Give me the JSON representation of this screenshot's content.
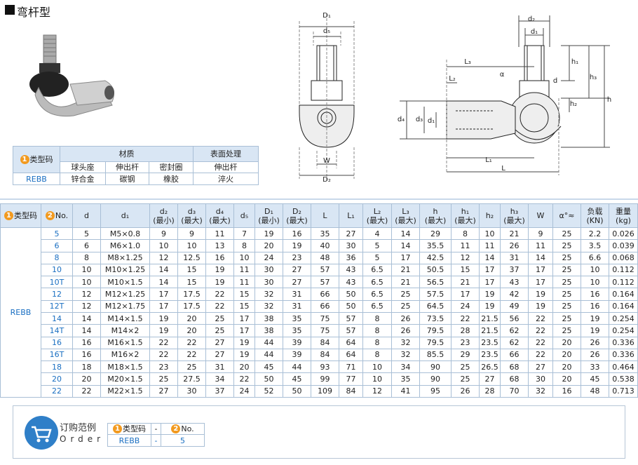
{
  "header": {
    "title": "弯杆型"
  },
  "material_table": {
    "type_col": {
      "badge": "1",
      "label": "类型码"
    },
    "groups": [
      "材质",
      "表面处理"
    ],
    "subheaders": [
      "球头座",
      "伸出杆",
      "密封圈",
      "伸出杆"
    ],
    "row": [
      "REBB",
      "锌合金",
      "碳钢",
      "橡胶",
      "淬火"
    ]
  },
  "drawing_labels": {
    "front": [
      "D₁",
      "d₅",
      "W",
      "D₂"
    ],
    "side": [
      "d₂",
      "d₁",
      "L₃",
      "L₂",
      "α",
      "h₁",
      "d",
      "h₃",
      "h",
      "h₂",
      "d₄",
      "d₃",
      "d₁",
      "L₁",
      "L"
    ]
  },
  "spec_table": {
    "columns": [
      {
        "badge": "1",
        "label": "类型码"
      },
      {
        "badge": "2",
        "label": "No."
      },
      {
        "label": "d"
      },
      {
        "label": "d₁"
      },
      {
        "label": "d₂",
        "note": "(最小)"
      },
      {
        "label": "d₃",
        "note": "(最大)"
      },
      {
        "label": "d₄",
        "note": "(最大)"
      },
      {
        "label": "d₅"
      },
      {
        "label": "D₁",
        "note": "(最小)"
      },
      {
        "label": "D₂",
        "note": "(最大)"
      },
      {
        "label": "L"
      },
      {
        "label": "L₁"
      },
      {
        "label": "L₂",
        "note": "(最大)"
      },
      {
        "label": "L₃",
        "note": "(最大)"
      },
      {
        "label": "h",
        "note": "(最大)"
      },
      {
        "label": "h₁",
        "note": "(最大)"
      },
      {
        "label": "h₂"
      },
      {
        "label": "h₃",
        "note": "(最大)"
      },
      {
        "label": "W"
      },
      {
        "label": "α°≈"
      },
      {
        "label": "负载",
        "note": "(KN)"
      },
      {
        "label": "重量",
        "note": "(kg)"
      }
    ],
    "type": "REBB",
    "rows": [
      [
        "5",
        5,
        "M5×0.8",
        9,
        9,
        11,
        7,
        19,
        16,
        35,
        27,
        4,
        14,
        29,
        8,
        10,
        21,
        9,
        25,
        2.2,
        0.026
      ],
      [
        "6",
        6,
        "M6×1.0",
        10,
        10,
        13,
        8,
        20,
        19,
        40,
        30,
        5,
        14,
        35.5,
        11,
        11,
        26,
        11,
        25,
        3.5,
        0.039
      ],
      [
        "8",
        8,
        "M8×1.25",
        12,
        12.5,
        16,
        10,
        24,
        23,
        48,
        36,
        5,
        17,
        42.5,
        12,
        14,
        31,
        14,
        25,
        6.6,
        0.068
      ],
      [
        "10",
        10,
        "M10×1.25",
        14,
        15,
        19,
        11,
        30,
        27,
        57,
        43,
        6.5,
        21,
        50.5,
        15,
        17,
        37,
        17,
        25,
        10,
        0.112
      ],
      [
        "10T",
        10,
        "M10×1.5",
        14,
        15,
        19,
        11,
        30,
        27,
        57,
        43,
        6.5,
        21,
        56.5,
        21,
        17,
        43,
        17,
        25,
        10,
        0.112
      ],
      [
        "12",
        12,
        "M12×1.25",
        17,
        17.5,
        22,
        15,
        32,
        31,
        66,
        50,
        6.5,
        25,
        57.5,
        17,
        19,
        42,
        19,
        25,
        16,
        0.164
      ],
      [
        "12T",
        12,
        "M12×1.75",
        17,
        17.5,
        22,
        15,
        32,
        31,
        66,
        50,
        6.5,
        25,
        64.5,
        24,
        19,
        49,
        19,
        25,
        16,
        0.164
      ],
      [
        "14",
        14,
        "M14×1.5",
        19,
        20,
        25,
        17,
        38,
        35,
        75,
        57,
        8,
        26,
        73.5,
        22,
        21.5,
        56,
        22,
        25,
        19,
        0.254
      ],
      [
        "14T",
        14,
        "M14×2",
        19,
        20,
        25,
        17,
        38,
        35,
        75,
        57,
        8,
        26,
        79.5,
        28,
        21.5,
        62,
        22,
        25,
        19,
        0.254
      ],
      [
        "16",
        16,
        "M16×1.5",
        22,
        22,
        27,
        19,
        44,
        39,
        84,
        64,
        8,
        32,
        79.5,
        23,
        23.5,
        62,
        22,
        20,
        26,
        0.336
      ],
      [
        "16T",
        16,
        "M16×2",
        22,
        22,
        27,
        19,
        44,
        39,
        84,
        64,
        8,
        32,
        85.5,
        29,
        23.5,
        66,
        22,
        20,
        26,
        0.336
      ],
      [
        "18",
        18,
        "M18×1.5",
        23,
        25,
        31,
        20,
        45,
        44,
        93,
        71,
        10,
        34,
        90,
        25,
        26.5,
        68,
        27,
        20,
        33,
        0.464
      ],
      [
        "20",
        20,
        "M20×1.5",
        25,
        27.5,
        34,
        22,
        50,
        45,
        99,
        77,
        10,
        35,
        90,
        25,
        27,
        68,
        30,
        20,
        45,
        0.538
      ],
      [
        "22",
        22,
        "M22×1.5",
        27,
        30,
        37,
        24,
        52,
        50,
        109,
        84,
        12,
        41,
        95,
        26,
        28,
        70,
        32,
        16,
        48,
        0.713
      ]
    ]
  },
  "order_example": {
    "title": "订购范例",
    "subtitle": "Order",
    "headers": [
      {
        "badge": "1",
        "label": "类型码"
      },
      {
        "label": "-"
      },
      {
        "badge": "2",
        "label": "No."
      }
    ],
    "values": [
      "REBB",
      "-",
      "5"
    ]
  }
}
